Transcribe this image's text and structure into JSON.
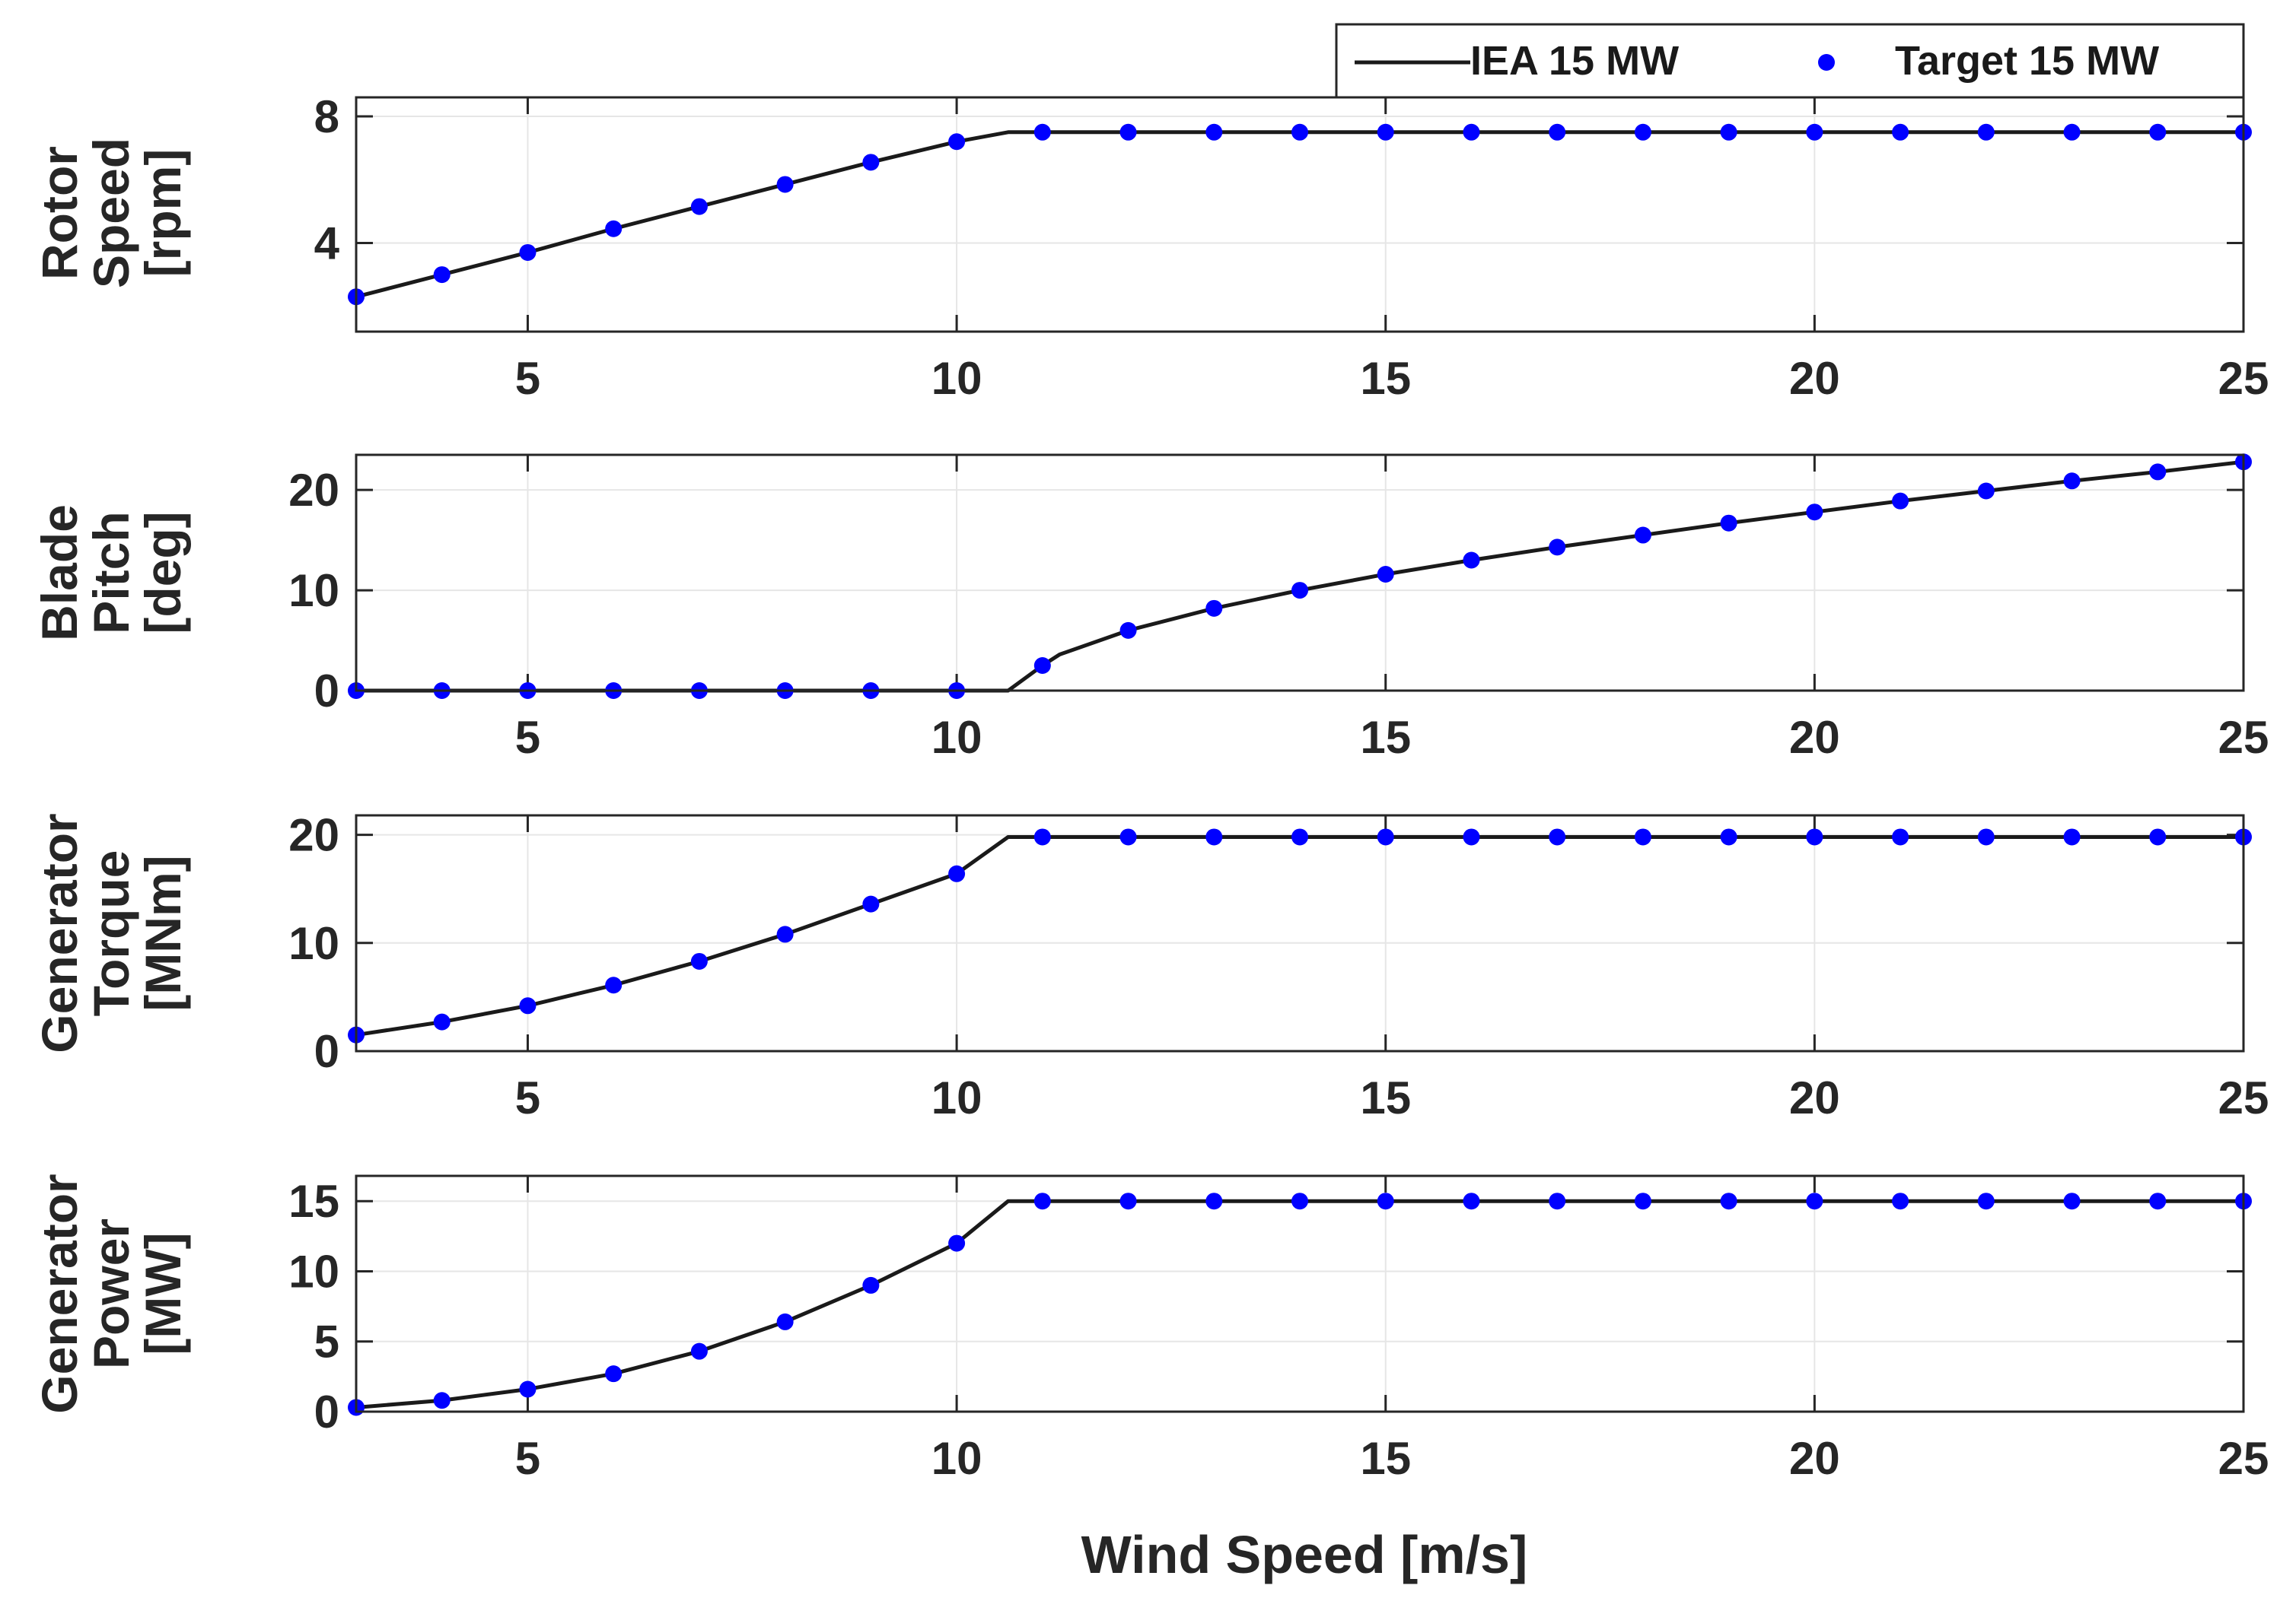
{
  "legend": {
    "entries": [
      {
        "label": "IEA 15 MW",
        "style": "line",
        "color": "#1a1a1a"
      },
      {
        "label": "Target 15 MW",
        "style": "marker",
        "color": "#0000ff"
      }
    ]
  },
  "xlabel": "Wind Speed [m/s]",
  "colors": {
    "line": "#1a1a1a",
    "marker": "#0000ff",
    "grid": "#e6e6e6",
    "axes": "#262626"
  },
  "chart_data": [
    {
      "type": "line",
      "ylabel_lines": [
        "Rotor",
        "Speed",
        "[rpm]"
      ],
      "xlim": [
        3,
        25
      ],
      "ylim": [
        1.2,
        8.6
      ],
      "xticks": [
        5,
        10,
        15,
        20,
        25
      ],
      "yticks": [
        4,
        8
      ],
      "grid": true,
      "series": [
        {
          "name": "IEA 15 MW",
          "style": "line",
          "x": [
            3,
            4,
            5,
            6,
            7,
            8,
            9,
            10,
            10.6,
            11,
            25
          ],
          "y": [
            2.3,
            3.0,
            3.7,
            4.45,
            5.15,
            5.85,
            6.55,
            7.2,
            7.5,
            7.5,
            7.5
          ]
        },
        {
          "name": "Target 15 MW",
          "style": "marker",
          "x": [
            3,
            4,
            5,
            6,
            7,
            8,
            9,
            10,
            11,
            12,
            13,
            14,
            15,
            16,
            17,
            18,
            19,
            20,
            21,
            22,
            23,
            24,
            25
          ],
          "y": [
            2.3,
            3.0,
            3.7,
            4.45,
            5.15,
            5.85,
            6.55,
            7.2,
            7.5,
            7.5,
            7.5,
            7.5,
            7.5,
            7.5,
            7.5,
            7.5,
            7.5,
            7.5,
            7.5,
            7.5,
            7.5,
            7.5,
            7.5
          ]
        }
      ]
    },
    {
      "type": "line",
      "ylabel_lines": [
        "Blade",
        "Pitch",
        "[deg]"
      ],
      "xlim": [
        3,
        25
      ],
      "ylim": [
        0,
        23.5
      ],
      "xticks": [
        5,
        10,
        15,
        20,
        25
      ],
      "yticks": [
        0,
        10,
        20
      ],
      "grid": true,
      "series": [
        {
          "name": "IEA 15 MW",
          "style": "line",
          "x": [
            3,
            10.6,
            11,
            11.2,
            12,
            13,
            14,
            15,
            16,
            17,
            18,
            19,
            20,
            21,
            22,
            23,
            24,
            25
          ],
          "y": [
            0,
            0,
            2.5,
            3.6,
            6.0,
            8.2,
            10.0,
            11.6,
            13.0,
            14.3,
            15.5,
            16.7,
            17.8,
            18.9,
            19.9,
            20.9,
            21.8,
            22.8
          ]
        },
        {
          "name": "Target 15 MW",
          "style": "marker",
          "x": [
            3,
            4,
            5,
            6,
            7,
            8,
            9,
            10,
            11,
            12,
            13,
            14,
            15,
            16,
            17,
            18,
            19,
            20,
            21,
            22,
            23,
            24,
            25
          ],
          "y": [
            0,
            0,
            0,
            0,
            0,
            0,
            0,
            0,
            2.5,
            6.0,
            8.2,
            10.0,
            11.6,
            13.0,
            14.3,
            15.5,
            16.7,
            17.8,
            18.9,
            19.9,
            20.9,
            21.8,
            22.8
          ]
        }
      ]
    },
    {
      "type": "line",
      "ylabel_lines": [
        "Generator",
        "Torque",
        "[MNm]"
      ],
      "xlim": [
        3,
        25
      ],
      "ylim": [
        0,
        21.8
      ],
      "xticks": [
        5,
        10,
        15,
        20,
        25
      ],
      "yticks": [
        0,
        10,
        20
      ],
      "grid": true,
      "series": [
        {
          "name": "IEA 15 MW",
          "style": "line",
          "x": [
            3,
            4,
            5,
            6,
            7,
            8,
            9,
            10,
            10.6,
            11,
            25
          ],
          "y": [
            1.5,
            2.7,
            4.2,
            6.1,
            8.3,
            10.8,
            13.6,
            16.4,
            19.8,
            19.8,
            19.8
          ]
        },
        {
          "name": "Target 15 MW",
          "style": "marker",
          "x": [
            3,
            4,
            5,
            6,
            7,
            8,
            9,
            10,
            11,
            12,
            13,
            14,
            15,
            16,
            17,
            18,
            19,
            20,
            21,
            22,
            23,
            24,
            25
          ],
          "y": [
            1.5,
            2.7,
            4.2,
            6.1,
            8.3,
            10.8,
            13.6,
            16.4,
            19.8,
            19.8,
            19.8,
            19.8,
            19.8,
            19.8,
            19.8,
            19.8,
            19.8,
            19.8,
            19.8,
            19.8,
            19.8,
            19.8,
            19.8
          ]
        }
      ]
    },
    {
      "type": "line",
      "ylabel_lines": [
        "Generator",
        "Power",
        "[MW]"
      ],
      "xlim": [
        3,
        25
      ],
      "ylim": [
        0,
        16.8
      ],
      "xticks": [
        5,
        10,
        15,
        20,
        25
      ],
      "yticks": [
        0,
        5,
        10,
        15
      ],
      "grid": true,
      "series": [
        {
          "name": "IEA 15 MW",
          "style": "line",
          "x": [
            3,
            4,
            5,
            6,
            7,
            8,
            9,
            10,
            10.6,
            11,
            25
          ],
          "y": [
            0.3,
            0.8,
            1.6,
            2.7,
            4.3,
            6.4,
            9.0,
            12.0,
            15.0,
            15.0,
            15.0
          ]
        },
        {
          "name": "Target 15 MW",
          "style": "marker",
          "x": [
            3,
            4,
            5,
            6,
            7,
            8,
            9,
            10,
            11,
            12,
            13,
            14,
            15,
            16,
            17,
            18,
            19,
            20,
            21,
            22,
            23,
            24,
            25
          ],
          "y": [
            0.3,
            0.8,
            1.6,
            2.7,
            4.3,
            6.4,
            9.0,
            12.0,
            15.0,
            15.0,
            15.0,
            15.0,
            15.0,
            15.0,
            15.0,
            15.0,
            15.0,
            15.0,
            15.0,
            15.0,
            15.0,
            15.0,
            15.0
          ]
        }
      ]
    }
  ]
}
